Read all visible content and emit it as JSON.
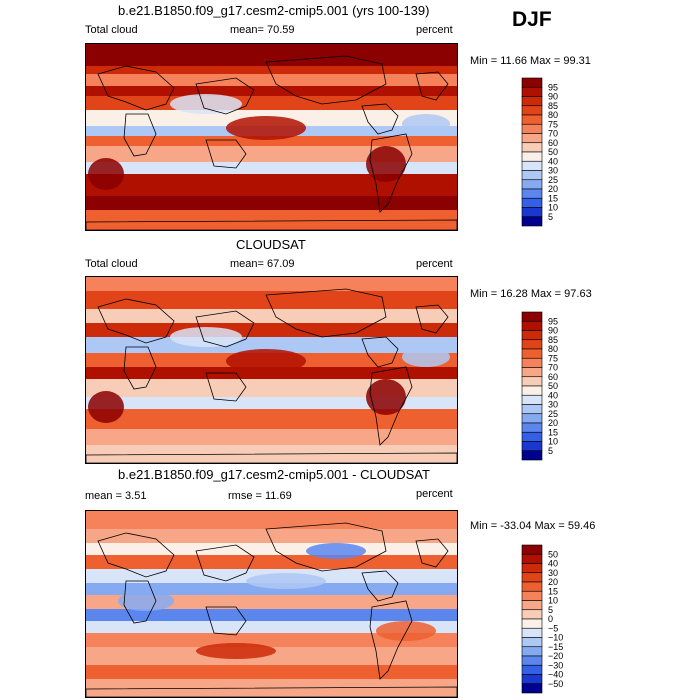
{
  "season": "DJF",
  "panels": [
    {
      "title": "b.e21.B1850.f09_g17.cesm2-cmip5.001 (yrs 100-139)",
      "left_label": "Total cloud",
      "mid_label": "mean=  70.59",
      "unit": "percent",
      "minmax": "Min =  11.66 Max =  99.31",
      "colorbar_labels": [
        "95",
        "90",
        "85",
        "80",
        "75",
        "70",
        "60",
        "50",
        "40",
        "30",
        "25",
        "20",
        "15",
        "10",
        "5"
      ]
    },
    {
      "title": "CLOUDSAT",
      "left_label": "Total cloud",
      "mid_label": "mean=  67.09",
      "unit": "percent",
      "minmax": "Min =  16.28 Max =  97.63",
      "colorbar_labels": [
        "95",
        "90",
        "85",
        "80",
        "75",
        "70",
        "60",
        "50",
        "40",
        "30",
        "25",
        "20",
        "15",
        "10",
        "5"
      ]
    },
    {
      "title": "b.e21.B1850.f09_g17.cesm2-cmip5.001 - CLOUDSAT",
      "left_label": "mean =   3.51",
      "mid_label": "rmse =  11.69",
      "unit": "percent",
      "minmax": "Min = -33.04 Max =  59.46",
      "colorbar_labels": [
        "50",
        "40",
        "30",
        "20",
        "15",
        "10",
        "5",
        "0",
        "−5",
        "−10",
        "−15",
        "−20",
        "−30",
        "−40",
        "−50"
      ]
    }
  ],
  "colors": {
    "scale": [
      "#8b0000",
      "#b01000",
      "#cc2a08",
      "#e04418",
      "#ee6030",
      "#f5825a",
      "#f7a688",
      "#f8cdb8",
      "#fbf0e8",
      "#d8e4f8",
      "#aec8f5",
      "#86aaf2",
      "#5a86ee",
      "#3460e8",
      "#1a38d0",
      "#000090"
    ]
  }
}
